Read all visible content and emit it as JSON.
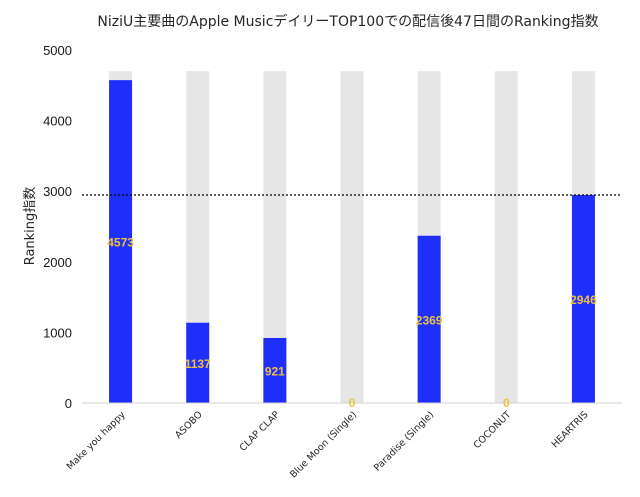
{
  "chart_data": {
    "type": "bar",
    "title": "NiziU主要曲のApple MusicデイリーTOP100での配信後47日間のRanking指数",
    "ylabel": "Ranking指数",
    "xlabel": "",
    "categories": [
      "Make you happy",
      "ASOBO",
      "CLAP CLAP",
      "Blue Moon (Single)",
      "Paradise (Single)",
      "COCONUT",
      "HEARTRIS"
    ],
    "values": [
      4573,
      1137,
      921,
      0,
      2369,
      0,
      2946
    ],
    "data_labels": [
      "4573",
      "1137",
      "921",
      "0",
      "2369",
      "0",
      "2946"
    ],
    "max_value": 4700,
    "reference_line": 2946,
    "ylim": [
      0,
      5000
    ],
    "yticks": [
      "0",
      "1000",
      "2000",
      "3000",
      "4000",
      "5000"
    ],
    "ytick_values": [
      0,
      1000,
      2000,
      3000,
      4000,
      5000
    ],
    "colors": {
      "bar": "#1f2ffb",
      "background_bar": "#e6e6e6",
      "data_label": "#f0c040",
      "reference_line": "#000000"
    },
    "grid": false,
    "legend": "none"
  }
}
